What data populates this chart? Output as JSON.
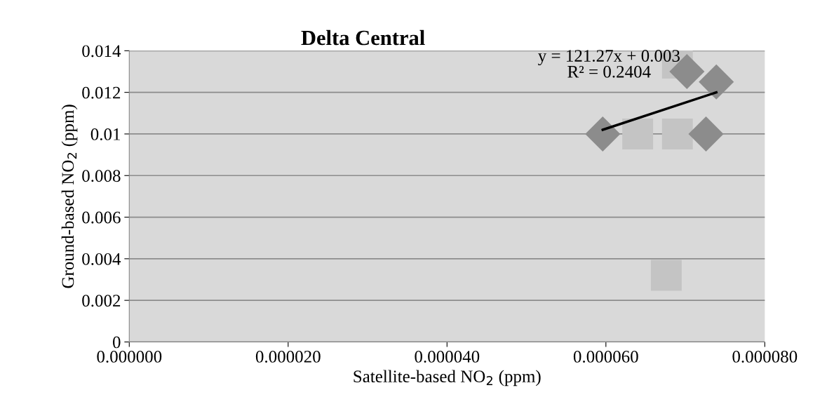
{
  "chart_data": {
    "type": "scatter",
    "title": "Delta Central",
    "xlabel": "Satellite-based NO$_{2}$ (ppm)",
    "ylabel": "Ground-based NO$_{2}$ (ppm)",
    "series": [
      {
        "color": "#8c8c8c",
        "marker": "diamond",
        "x": [
          5.96e-05,
          7.26e-05,
          7.02e-05,
          7.39e-05
        ],
        "values": [
          0.01,
          0.01,
          0.013,
          0.0125
        ]
      },
      {
        "color": "#c4c4c4",
        "marker": "square",
        "x": [
          6.4e-05,
          6.9e-05,
          6.9e-05,
          6.76e-05
        ],
        "values": [
          0.01,
          0.01,
          0.0134,
          0.0032
        ]
      },
      {
        "type": "line",
        "color": "#000000",
        "marker": "none",
        "line_style": "solid",
        "x": [
          5.96e-05,
          7.39e-05
        ],
        "values": [
          0.0102,
          0.012
        ]
      }
    ],
    "annotations": [
      "y = 121.27x + 0.003\nR² = 0.2404"
    ],
    "xlim": [
      0,
      8e-05
    ],
    "ylim": [
      0,
      0.014
    ],
    "xticks": [
      {
        "value": 0,
        "label": "0.000000"
      },
      {
        "value": 2e-05,
        "label": "0.000020"
      },
      {
        "value": 4e-05,
        "label": "0.000040"
      },
      {
        "value": 6e-05,
        "label": "0.000060"
      },
      {
        "value": 8e-05,
        "label": "0.000080"
      }
    ],
    "yticks": [
      0,
      0.002,
      0.004,
      0.006,
      0.008,
      0.01,
      0.012,
      0.014
    ],
    "grid": "y",
    "legend": false
  }
}
